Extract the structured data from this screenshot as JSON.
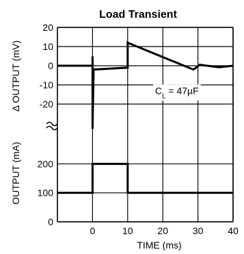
{
  "chart_data": {
    "type": "line",
    "title": "Load Transient",
    "xlabel": "TIME (ms)",
    "xlim": [
      -10,
      40
    ],
    "x_ticks": [
      "0",
      "10",
      "20",
      "30",
      "40"
    ],
    "panels": [
      {
        "id": "voltage",
        "ylabel": "Δ OUTPUT (mV)",
        "ylim": [
          -30,
          20
        ],
        "y_ticks": [
          "20",
          "10",
          "0",
          "-10",
          "-20"
        ],
        "series": [
          {
            "x": [
              -10,
              0,
              0,
              0,
              0.3,
              10,
              10,
              28.7,
              29.5,
              30.5,
              36,
              40
            ],
            "y": [
              0,
              0,
              4.8,
              -33,
              -2,
              -1,
              12,
              -2,
              -1,
              0.5,
              -0.8,
              0
            ]
          }
        ]
      },
      {
        "id": "current",
        "ylabel": "OUTPUT (mA)",
        "ylim": [
          0,
          300
        ],
        "y_ticks": [
          "200",
          "100",
          "0"
        ],
        "series": [
          {
            "x": [
              -10,
              0,
              0,
              10,
              10,
              40
            ],
            "y": [
              100,
              100,
              200,
              200,
              100,
              100
            ]
          }
        ]
      }
    ],
    "annotations": [
      {
        "base": "C",
        "sub": "L",
        "rest": " = 47µF",
        "x": 24,
        "y": -13,
        "panel": "voltage"
      }
    ],
    "grid": true
  }
}
